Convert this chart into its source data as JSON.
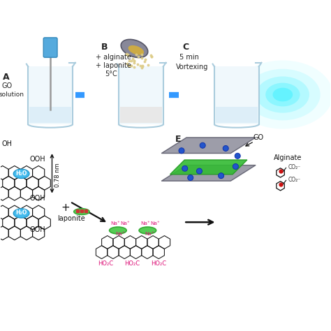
{
  "bg_color": "#ffffff",
  "arrow_color": "#3399ff",
  "beaker_outline": "#aaccdd",
  "label_A": "A",
  "label_B": "B",
  "label_C": "C",
  "label_E": "E",
  "text_go_sol": "GO",
  "text_solution": "solution",
  "text_B1": "+ alginate",
  "text_B2": "+ laponite",
  "text_B3": "5°C",
  "text_C1": "5 min",
  "text_C2": "Vortexing",
  "text_go": "GO",
  "text_alginate": "Alginate",
  "text_laponite": "+ laponite",
  "text_078": "0.78 nm",
  "text_oh": "OH",
  "text_ooh1": "OOH",
  "text_ooh2": "OOH",
  "text_ooh3": "OOH",
  "graphene_color": "#111111",
  "laponite_green": "#44bb44",
  "na_pink": "#ff66aa",
  "cyan_glow": "#00eeff",
  "blue_dot_color": "#2255cc",
  "beaker_fill": "#f0f8fc",
  "liquid_color": "#ddeef8",
  "stirrer_color": "#55aadd",
  "h2o_color": "#44bbee",
  "powder_color": "#ddcc88",
  "dish_color": "#888899",
  "go_sheet_color": "#777788",
  "lap_green_color": "#33bb33"
}
